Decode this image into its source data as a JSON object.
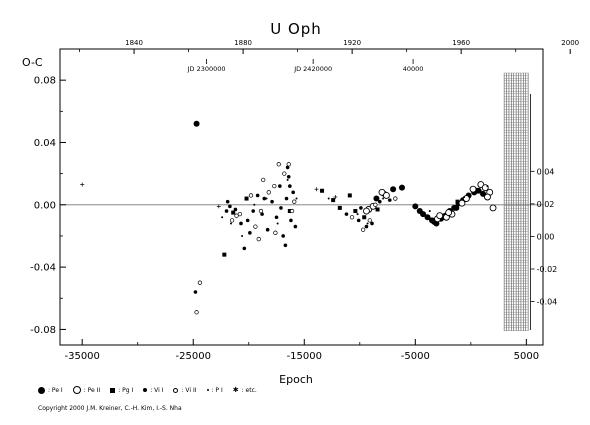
{
  "chart_data": {
    "type": "scatter",
    "title": "U  Oph",
    "xlabel": "Epoch",
    "ylabel": "O-C",
    "xlim": [
      -37000,
      6500
    ],
    "ylim": [
      -0.09,
      0.1
    ],
    "x_ticks": [
      "-35000",
      "-25000",
      "-15000",
      "-5000",
      "5000"
    ],
    "x_tick_values": [
      -35000,
      -25000,
      -15000,
      -5000,
      5000
    ],
    "y_ticks": [
      "-0.08",
      "-0.04",
      "0.00",
      "0.04",
      "0.08"
    ],
    "y_tick_values": [
      -0.08,
      -0.04,
      0.0,
      0.04,
      0.08
    ],
    "y_tick_minor": [
      -0.06,
      -0.02,
      0.02,
      0.06
    ],
    "top_axis_years": [
      "1840",
      "1880",
      "1920",
      "1960",
      "2000"
    ],
    "top_axis_epochs": [
      -30330,
      -20510,
      -10690,
      -870,
      8950
    ],
    "jd_labels": [
      {
        "text": "JD 2300000",
        "epoch": -23800
      },
      {
        "text": "JD 2420000",
        "epoch": -14200
      },
      {
        "text": "40000",
        "epoch": -5200
      }
    ],
    "right_ticks": [
      "-0.04",
      "-0.02",
      "0.00",
      "0.02",
      "0.04"
    ],
    "right_tick_values": [
      -0.04,
      -0.02,
      0.0,
      0.02,
      0.04
    ],
    "right_ylim": [
      -0.055,
      0.085
    ],
    "right_hatch_epoch_range": [
      3000,
      5200
    ],
    "legend": [
      {
        "symbol": "filled-large",
        "label": ": Pe I"
      },
      {
        "symbol": "open-large",
        "label": ": Pe II"
      },
      {
        "symbol": "square",
        "label": ": Pg I"
      },
      {
        "symbol": "filled-small",
        "label": ": Vi I"
      },
      {
        "symbol": "open-small",
        "label": ": Vi II"
      },
      {
        "symbol": "dot",
        "label": ": P I"
      },
      {
        "symbol": "star",
        "label": ": etc."
      }
    ],
    "series": [
      {
        "symbol": "filled-large",
        "points": [
          [
            -24700,
            0.052
          ],
          [
            -7000,
            0.01
          ],
          [
            -6200,
            0.011
          ],
          [
            -4300,
            -0.006
          ],
          [
            -3900,
            -0.008
          ],
          [
            -3500,
            -0.01
          ],
          [
            -3100,
            -0.012
          ],
          [
            -2700,
            -0.009
          ],
          [
            -2300,
            -0.007
          ],
          [
            -1900,
            -0.004
          ],
          [
            -1500,
            -0.002
          ],
          [
            -1100,
            0.001
          ],
          [
            -700,
            0.003
          ],
          [
            -200,
            0.006
          ],
          [
            300,
            0.008
          ],
          [
            700,
            0.009
          ],
          [
            1100,
            0.007
          ],
          [
            -5000,
            -0.001
          ],
          [
            -4600,
            -0.004
          ],
          [
            -8500,
            0.004
          ],
          [
            -7800,
            0.007
          ],
          [
            -3300,
            -0.011
          ],
          [
            -2500,
            -0.008
          ],
          [
            -1300,
            -0.002
          ],
          [
            500,
            0.009
          ]
        ]
      },
      {
        "symbol": "open-large",
        "points": [
          [
            -9200,
            -0.003
          ],
          [
            -8800,
            -0.001
          ],
          [
            -8000,
            0.008
          ],
          [
            -7600,
            0.006
          ],
          [
            -3000,
            -0.009
          ],
          [
            -2800,
            -0.007
          ],
          [
            -2200,
            -0.008
          ],
          [
            -1700,
            -0.006
          ],
          [
            -800,
            0.001
          ],
          [
            900,
            0.013
          ],
          [
            1300,
            0.011
          ],
          [
            1700,
            0.008
          ],
          [
            2000,
            -0.002
          ],
          [
            1500,
            0.005
          ],
          [
            -2000,
            -0.005
          ],
          [
            -400,
            0.004
          ],
          [
            200,
            0.01
          ],
          [
            -9400,
            -0.004
          ]
        ]
      },
      {
        "symbol": "square",
        "points": [
          [
            -22200,
            -0.032
          ],
          [
            -13400,
            0.009
          ],
          [
            -12400,
            0.003
          ],
          [
            -11800,
            -0.002
          ],
          [
            -10900,
            0.006
          ],
          [
            -10400,
            -0.004
          ],
          [
            -9600,
            -0.008
          ],
          [
            -8400,
            -0.003
          ],
          [
            -1200,
            0.002
          ],
          [
            -16300,
            -0.004
          ],
          [
            -20200,
            0.004
          ],
          [
            -21400,
            -0.005
          ]
        ]
      },
      {
        "symbol": "filled-small",
        "points": [
          [
            -24800,
            -0.056
          ],
          [
            -22000,
            -0.004
          ],
          [
            -21700,
            -0.001
          ],
          [
            -21200,
            -0.003
          ],
          [
            -20700,
            -0.012
          ],
          [
            -20400,
            -0.028
          ],
          [
            -20100,
            -0.01
          ],
          [
            -19600,
            -0.004
          ],
          [
            -19200,
            0.006
          ],
          [
            -18800,
            -0.006
          ],
          [
            -18300,
            -0.016
          ],
          [
            -17900,
            0.002
          ],
          [
            -17500,
            -0.008
          ],
          [
            -17200,
            0.012
          ],
          [
            -16900,
            -0.02
          ],
          [
            -16600,
            0.004
          ],
          [
            -16400,
            0.018
          ],
          [
            -16200,
            -0.01
          ],
          [
            -16000,
            0.008
          ],
          [
            -15800,
            -0.014
          ],
          [
            -16700,
            -0.026
          ],
          [
            -16500,
            0.024
          ],
          [
            -17100,
            -0.002
          ],
          [
            -18600,
            0.004
          ],
          [
            -11200,
            -0.006
          ],
          [
            -10100,
            -0.01
          ],
          [
            -9900,
            -0.002
          ],
          [
            -9400,
            -0.014
          ],
          [
            -8900,
            -0.012
          ],
          [
            -8200,
            0.002
          ],
          [
            -7300,
            0.003
          ],
          [
            -21900,
            0.002
          ],
          [
            -19900,
            -0.018
          ],
          [
            -16300,
            0.012
          ]
        ]
      },
      {
        "symbol": "open-small",
        "points": [
          [
            -24400,
            -0.05
          ],
          [
            -24700,
            -0.069
          ],
          [
            -21500,
            -0.01
          ],
          [
            -20800,
            -0.006
          ],
          [
            -19800,
            0.006
          ],
          [
            -19400,
            -0.014
          ],
          [
            -19100,
            -0.022
          ],
          [
            -18700,
            0.016
          ],
          [
            -18200,
            0.008
          ],
          [
            -17700,
            0.012
          ],
          [
            -17300,
            0.026
          ],
          [
            -16800,
            0.02
          ],
          [
            -16400,
            0.026
          ],
          [
            -16100,
            -0.004
          ],
          [
            -15900,
            0.002
          ],
          [
            -10700,
            -0.008
          ],
          [
            -9700,
            -0.016
          ],
          [
            -9100,
            -0.01
          ],
          [
            -8600,
            0.0
          ],
          [
            -6800,
            0.004
          ],
          [
            -17600,
            -0.018
          ],
          [
            -18900,
            -0.004
          ],
          [
            -21100,
            -0.007
          ]
        ]
      },
      {
        "symbol": "dot",
        "points": [
          [
            -22400,
            -0.008
          ],
          [
            -21600,
            -0.012
          ],
          [
            -20600,
            -0.02
          ],
          [
            -19500,
            0.0
          ],
          [
            -18400,
            0.004
          ],
          [
            -17400,
            -0.012
          ],
          [
            -16500,
            0.016
          ],
          [
            -15700,
            0.004
          ],
          [
            -12800,
            0.004
          ],
          [
            -10200,
            -0.006
          ],
          [
            -9300,
            -0.012
          ],
          [
            -7900,
            0.004
          ],
          [
            -3700,
            -0.004
          ],
          [
            -600,
            0.005
          ],
          [
            1500,
            0.012
          ]
        ]
      },
      {
        "symbol": "star",
        "points": [
          [
            -35000,
            0.013
          ],
          [
            -22700,
            -0.001
          ],
          [
            -13900,
            0.01
          ],
          [
            -12200,
            0.005
          ]
        ]
      }
    ]
  },
  "copyright": "Copyright 2000 J.M. Kreiner, C.-H. Kim, I.-S. Nha"
}
